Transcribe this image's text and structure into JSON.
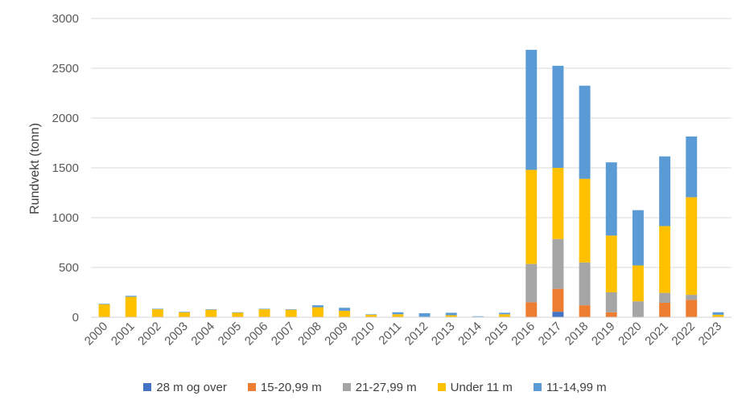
{
  "chart_data": {
    "type": "bar",
    "stacked": true,
    "title": "",
    "xlabel": "",
    "ylabel": "Rundvekt (tonn)",
    "ylim": [
      0,
      3000
    ],
    "yticks": [
      0,
      500,
      1000,
      1500,
      2000,
      2500,
      3000
    ],
    "grid": true,
    "legend_position": "bottom",
    "categories": [
      "2000",
      "2001",
      "2002",
      "2003",
      "2004",
      "2005",
      "2006",
      "2007",
      "2008",
      "2009",
      "2010",
      "2011",
      "2012",
      "2013",
      "2014",
      "2015",
      "2016",
      "2017",
      "2018",
      "2019",
      "2020",
      "2021",
      "2022",
      "2023"
    ],
    "series": [
      {
        "name": "28 m og over",
        "color": "#4472C4",
        "values": [
          0,
          0,
          0,
          0,
          0,
          0,
          0,
          0,
          0,
          0,
          0,
          0,
          0,
          0,
          0,
          0,
          0,
          55,
          0,
          0,
          0,
          0,
          0,
          0
        ]
      },
      {
        "name": "15-20,99 m",
        "color": "#ED7D31",
        "values": [
          0,
          0,
          0,
          0,
          0,
          0,
          0,
          0,
          0,
          0,
          0,
          0,
          0,
          0,
          0,
          0,
          150,
          230,
          120,
          50,
          0,
          145,
          175,
          0
        ]
      },
      {
        "name": "21-27,99 m",
        "color": "#A5A5A5",
        "values": [
          0,
          0,
          0,
          0,
          0,
          0,
          0,
          0,
          0,
          0,
          0,
          0,
          0,
          0,
          0,
          0,
          385,
          500,
          430,
          200,
          160,
          100,
          50,
          0
        ]
      },
      {
        "name": "Under 11 m",
        "color": "#FFC000",
        "values": [
          130,
          205,
          80,
          50,
          75,
          45,
          80,
          75,
          100,
          65,
          25,
          30,
          5,
          20,
          5,
          30,
          945,
          715,
          840,
          570,
          360,
          670,
          980,
          25
        ]
      },
      {
        "name": "11-14,99 m",
        "color": "#5B9BD5",
        "values": [
          5,
          10,
          5,
          5,
          5,
          5,
          5,
          5,
          20,
          30,
          5,
          20,
          35,
          25,
          5,
          15,
          1205,
          1025,
          935,
          735,
          555,
          700,
          610,
          25
        ]
      }
    ]
  }
}
